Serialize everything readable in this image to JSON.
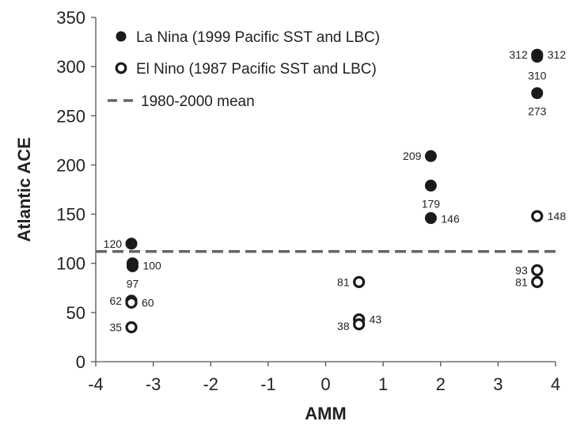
{
  "chart_data": {
    "type": "scatter",
    "title": "",
    "xlabel": "AMM",
    "ylabel": "Atlantic ACE",
    "xlim": [
      -4,
      4
    ],
    "ylim": [
      0,
      350
    ],
    "xticks": [
      -4,
      -3,
      -2,
      -1,
      0,
      1,
      2,
      3,
      4
    ],
    "yticks": [
      0,
      50,
      100,
      150,
      200,
      250,
      300,
      350
    ],
    "grid": false,
    "legend_position": "top-left",
    "series": [
      {
        "name": "La Nina (1999 Pacific SST and LBC)",
        "marker": "filled-circle",
        "color": "#1a1a1a",
        "points": [
          {
            "x": -3.38,
            "y": 120,
            "label": "120"
          },
          {
            "x": -3.36,
            "y": 100,
            "label": "100"
          },
          {
            "x": -3.36,
            "y": 97,
            "label": "97"
          },
          {
            "x": 1.83,
            "y": 209,
            "label": "209"
          },
          {
            "x": 1.83,
            "y": 179,
            "label": "179"
          },
          {
            "x": 1.83,
            "y": 146,
            "label": "146"
          },
          {
            "x": 3.68,
            "y": 312,
            "label": "312"
          },
          {
            "x": 3.68,
            "y": 312,
            "label": "312"
          },
          {
            "x": 3.68,
            "y": 310,
            "label": "310"
          },
          {
            "x": 3.68,
            "y": 273,
            "label": "273"
          }
        ]
      },
      {
        "name": "El Nino (1987 Pacific SST and LBC)",
        "marker": "open-circle",
        "color": "#1a1a1a",
        "points": [
          {
            "x": -3.38,
            "y": 62,
            "label": "62"
          },
          {
            "x": -3.38,
            "y": 60,
            "label": "60"
          },
          {
            "x": -3.38,
            "y": 35,
            "label": "35"
          },
          {
            "x": 0.58,
            "y": 81,
            "label": "81"
          },
          {
            "x": 0.58,
            "y": 43,
            "label": "43"
          },
          {
            "x": 0.58,
            "y": 38,
            "label": "38"
          },
          {
            "x": 3.68,
            "y": 148,
            "label": "148"
          },
          {
            "x": 3.68,
            "y": 93,
            "label": "93"
          },
          {
            "x": 3.68,
            "y": 81,
            "label": "81"
          }
        ]
      },
      {
        "name": "1980-2000 mean",
        "marker": "dashed-line",
        "color": "#666666",
        "y": 112
      }
    ]
  }
}
